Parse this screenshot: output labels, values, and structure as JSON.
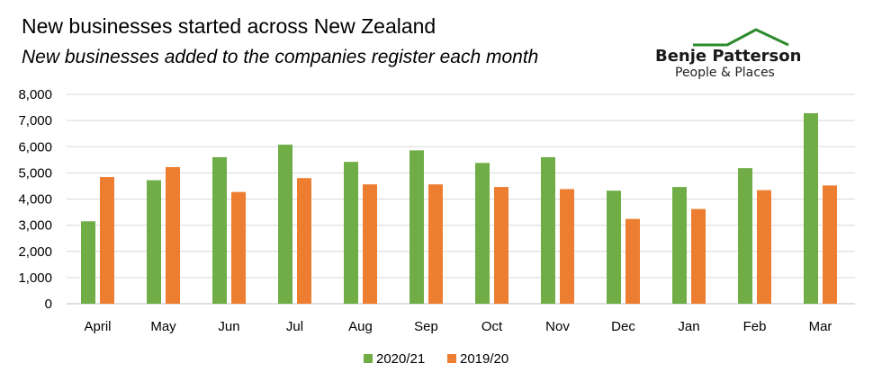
{
  "title": "New businesses started across New Zealand",
  "subtitle": "New businesses added to the companies register each month",
  "logo": {
    "name": "Benje Patterson",
    "tagline": "People & Places",
    "icon": "roof-icon",
    "color": "#2e8b2e"
  },
  "colors": {
    "series1": "#70ad47",
    "series2": "#ed7d31",
    "grid": "#d9d9d9",
    "axis": "#595959"
  },
  "chart_data": {
    "type": "bar",
    "categories": [
      "April",
      "May",
      "Jun",
      "Jul",
      "Aug",
      "Sep",
      "Oct",
      "Nov",
      "Dec",
      "Jan",
      "Feb",
      "Mar"
    ],
    "series": [
      {
        "name": "2020/21",
        "values": [
          3150,
          4720,
          5600,
          6080,
          5420,
          5860,
          5380,
          5600,
          4320,
          4460,
          5180,
          7280
        ]
      },
      {
        "name": "2019/20",
        "values": [
          4840,
          5220,
          4270,
          4800,
          4560,
          4560,
          4460,
          4380,
          3240,
          3620,
          4340,
          4520
        ]
      }
    ],
    "ylim": [
      0,
      8000
    ],
    "yticks": [
      "0",
      "1,000",
      "2,000",
      "3,000",
      "4,000",
      "5,000",
      "6,000",
      "7,000",
      "8,000"
    ],
    "ytick_values": [
      0,
      1000,
      2000,
      3000,
      4000,
      5000,
      6000,
      7000,
      8000
    ],
    "grid": true,
    "legend_position": "bottom"
  }
}
